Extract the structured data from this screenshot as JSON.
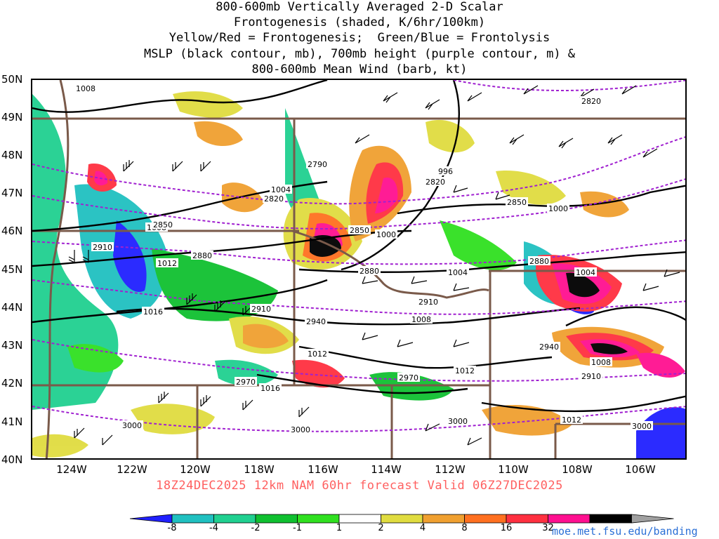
{
  "title": {
    "line1": "800-600mb Vertically Averaged 2-D Scalar",
    "line2": "Frontogenesis (shaded, K/6hr/100km)",
    "line3": "Yellow/Red = Frontogenesis;  Green/Blue = Frontolysis",
    "line4": "MSLP (black contour, mb), 700mb height (purple contour, m) &",
    "line5": "800-600mb Mean Wind (barb, kt)"
  },
  "valid_line": "18Z24DEC2025 12km NAM 60hr forecast Valid 06Z27DEC2025",
  "credit": "moe.met.fsu.edu/banding",
  "lat_labels": [
    "50N",
    "49N",
    "48N",
    "47N",
    "46N",
    "45N",
    "44N",
    "43N",
    "42N",
    "41N",
    "40N"
  ],
  "lon_labels": [
    "124W",
    "122W",
    "120W",
    "118W",
    "116W",
    "114W",
    "112W",
    "110W",
    "108W",
    "106W"
  ],
  "colorbar": {
    "labels": [
      "-8",
      "-4",
      "-2",
      "-1",
      "1",
      "2",
      "4",
      "8",
      "16",
      "32"
    ],
    "colors": [
      "#2020ff",
      "#20c0c0",
      "#20d090",
      "#10c030",
      "#30e020",
      "#ffffff",
      "#e0dc40",
      "#f0a030",
      "#ff7020",
      "#ff3040",
      "#ff1090",
      "#000000",
      "#a0a0a0"
    ]
  },
  "mslp_labels": [
    "1008",
    "1004",
    "1000",
    "996",
    "1008",
    "1012",
    "1016",
    "1004",
    "1008",
    "1012",
    "1016",
    "1012",
    "1008",
    "1000",
    "1004",
    "1012"
  ],
  "height_labels": [
    "2820",
    "2790",
    "2820",
    "2850",
    "2850",
    "2880",
    "2910",
    "2880",
    "2910",
    "2940",
    "2910",
    "2970",
    "2970",
    "2940",
    "2910",
    "3000",
    "3000",
    "3000",
    "3000",
    "2820",
    "2880",
    "2850"
  ],
  "colors": {
    "mslp": "#000000",
    "height": "#a020d0",
    "boundary": "#7a5a4a",
    "title": "#000000",
    "valid": "#ff6060",
    "credit": "#2a6fd6"
  }
}
